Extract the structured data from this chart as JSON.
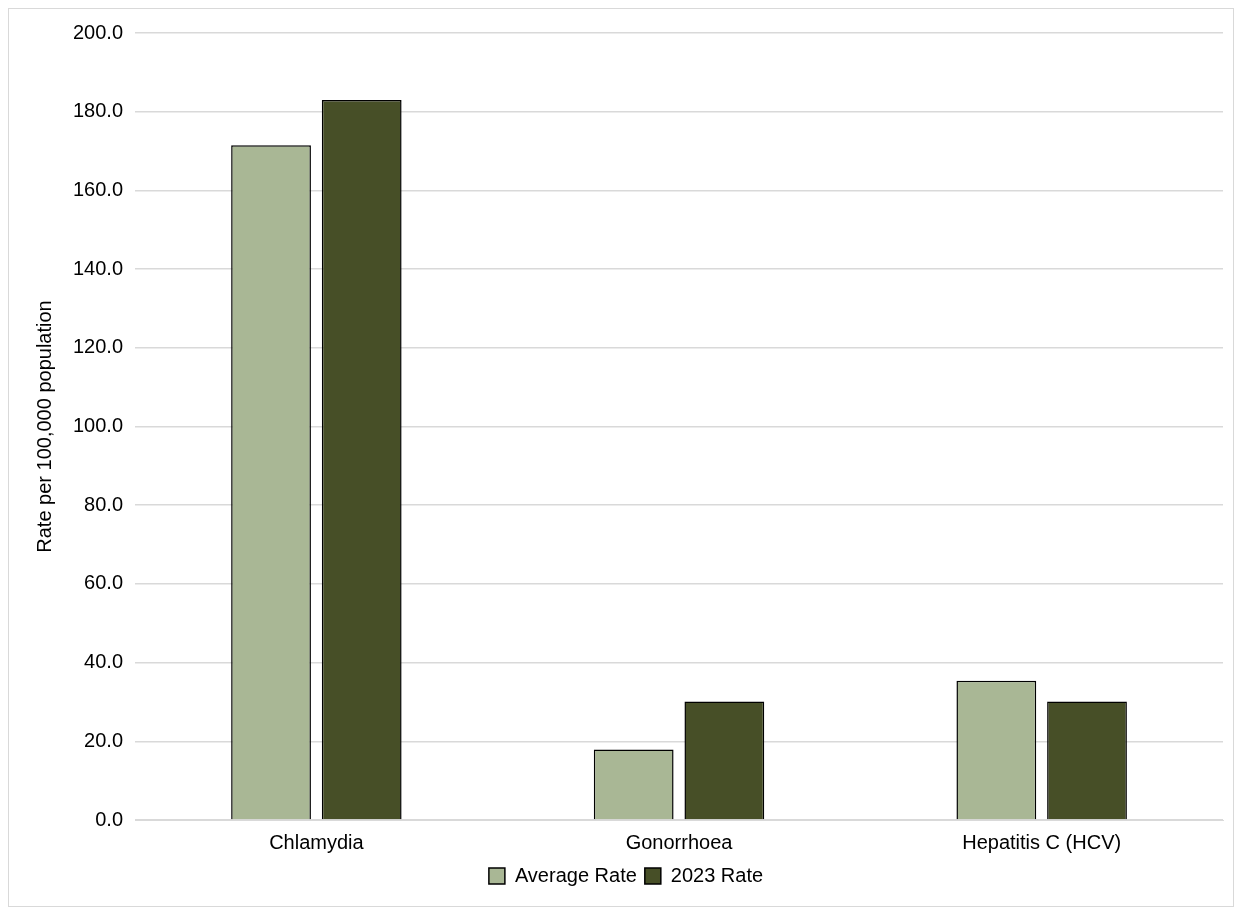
{
  "chart_data": {
    "type": "bar",
    "ylabel": "Rate per 100,000 population",
    "categories": [
      "Chlamydia",
      "Gonorrhoea",
      "Hepatitis C (HCV)"
    ],
    "series": [
      {
        "name": "Average Rate",
        "color": "#a9b795",
        "values": [
          171.5,
          17.9,
          35.4
        ]
      },
      {
        "name": "2023 Rate",
        "color": "#474f27",
        "values": [
          183.0,
          30.1,
          30.1
        ]
      }
    ],
    "ylim": [
      0,
      200
    ],
    "yticks": [
      {
        "value": 0,
        "label": "0.0"
      },
      {
        "value": 20,
        "label": "20.0"
      },
      {
        "value": 40,
        "label": "40.0"
      },
      {
        "value": 60,
        "label": "60.0"
      },
      {
        "value": 80,
        "label": "80.0"
      },
      {
        "value": 100,
        "label": "100.0"
      },
      {
        "value": 120,
        "label": "120.0"
      },
      {
        "value": 140,
        "label": "140.0"
      },
      {
        "value": 160,
        "label": "160.0"
      },
      {
        "value": 180,
        "label": "180.0"
      },
      {
        "value": 200,
        "label": "200.0"
      }
    ],
    "grid": "y",
    "legend": "bottom"
  }
}
